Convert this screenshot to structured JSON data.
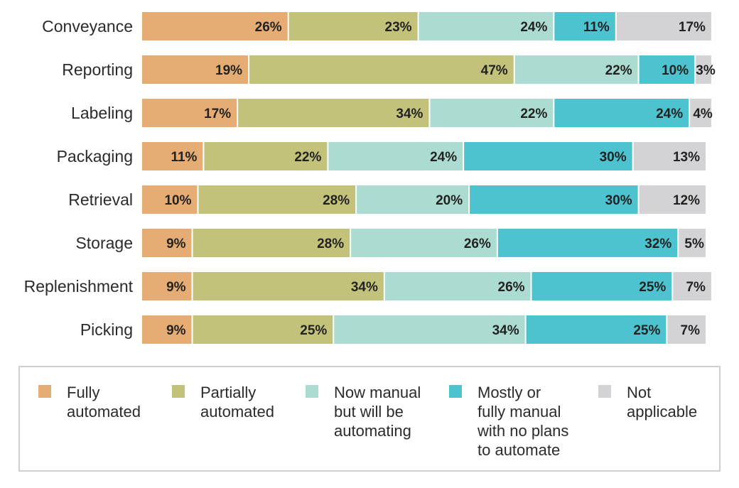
{
  "chart_data": {
    "type": "bar",
    "orientation": "horizontal",
    "stacked": true,
    "categories": [
      "Conveyance",
      "Reporting",
      "Labeling",
      "Packaging",
      "Retrieval",
      "Storage",
      "Replenishment",
      "Picking"
    ],
    "series": [
      {
        "name": "Fully automated",
        "color": "#e5ac73",
        "values": [
          26,
          19,
          17,
          11,
          10,
          9,
          9,
          9
        ]
      },
      {
        "name": "Partially automated",
        "color": "#c3c27a",
        "values": [
          23,
          47,
          34,
          22,
          28,
          28,
          34,
          25
        ]
      },
      {
        "name": "Now manual but will be automating",
        "color": "#acdcd1",
        "values": [
          24,
          22,
          22,
          24,
          20,
          26,
          26,
          34
        ]
      },
      {
        "name": "Mostly or fully manual with no plans to automate",
        "color": "#4cc3ce",
        "values": [
          11,
          10,
          24,
          30,
          30,
          32,
          25,
          25
        ]
      },
      {
        "name": "Not applicable",
        "color": "#d3d3d5",
        "values": [
          17,
          3,
          4,
          13,
          12,
          5,
          7,
          7
        ]
      }
    ],
    "value_suffix": "%",
    "xlim": [
      0,
      100
    ],
    "grid": false,
    "legend_position": "bottom"
  },
  "legend": {
    "items": [
      {
        "text": "Fully\nautomated"
      },
      {
        "text": "Partially\nautomated"
      },
      {
        "text": "Now manual\nbut will be\nautomating"
      },
      {
        "text": "Mostly or\nfully manual\nwith no plans\nto automate"
      },
      {
        "text": "Not\napplicable"
      }
    ]
  }
}
